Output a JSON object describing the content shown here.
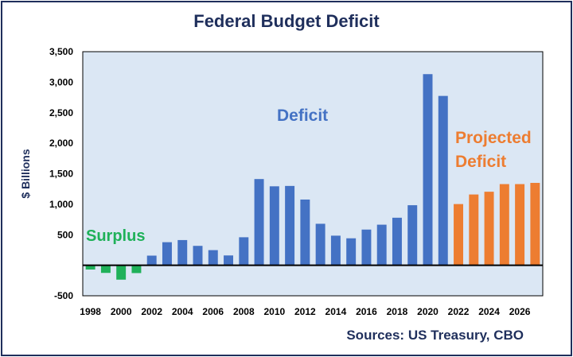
{
  "colors": {
    "frame": "#1f2f5c",
    "plot_bg": "#dbe7f4",
    "surplus": "#1fb159",
    "deficit": "#4472c4",
    "projected": "#ed7d31"
  },
  "chart_data": {
    "type": "bar",
    "title": "Federal Budget Deficit",
    "ylabel": "$ Billions",
    "xlabel": "",
    "source": "Sources: US Treasury, CBO",
    "ylim": [
      -500,
      3500
    ],
    "yticks": [
      -500,
      500,
      1000,
      1500,
      2000,
      2500,
      3000,
      3500
    ],
    "ytick_labels": [
      "-500",
      "500",
      "1,000",
      "1,500",
      "2,000",
      "2,500",
      "3,000",
      "3,500"
    ],
    "xtick_labels": [
      "1998",
      "2000",
      "2002",
      "2004",
      "2006",
      "2008",
      "2010",
      "2012",
      "2014",
      "2016",
      "2018",
      "2020",
      "2022",
      "2024",
      "2026"
    ],
    "grid": false,
    "annotations": [
      {
        "text": "Surplus",
        "color": "#1fb159"
      },
      {
        "text": "Deficit",
        "color": "#4472c4"
      },
      {
        "text": "Projected",
        "color": "#ed7d31"
      },
      {
        "text": "Deficit",
        "color": "#ed7d31"
      }
    ],
    "series": [
      {
        "category": "surplus",
        "x": [
          1998,
          1999,
          2000,
          2001
        ],
        "values": [
          -70,
          -125,
          -236,
          -128
        ]
      },
      {
        "category": "deficit",
        "x": [
          2002,
          2003,
          2004,
          2005,
          2006,
          2007,
          2008,
          2009,
          2010,
          2011,
          2012,
          2013,
          2014,
          2015,
          2016,
          2017,
          2018,
          2019,
          2020,
          2021
        ],
        "values": [
          158,
          378,
          413,
          318,
          248,
          161,
          459,
          1413,
          1294,
          1300,
          1077,
          680,
          485,
          442,
          585,
          665,
          779,
          984,
          3132,
          2775
        ]
      },
      {
        "category": "projected",
        "x": [
          2022,
          2023,
          2024,
          2025,
          2026,
          2027
        ],
        "values": [
          1003,
          1160,
          1205,
          1330,
          1330,
          1350
        ]
      }
    ]
  }
}
